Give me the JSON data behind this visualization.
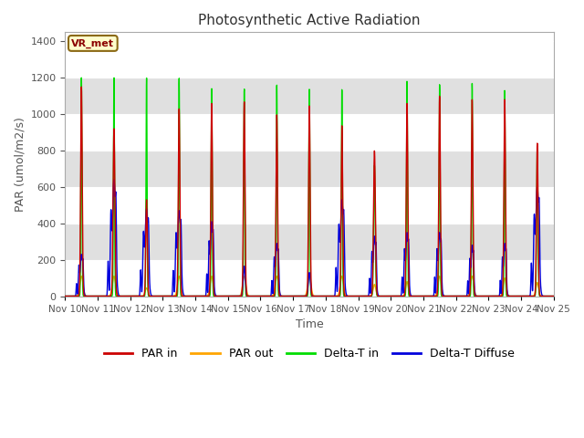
{
  "title": "Photosynthetic Active Radiation",
  "ylabel": "PAR (umol/m2/s)",
  "xlabel": "Time",
  "ylim": [
    0,
    1450
  ],
  "yticks": [
    0,
    200,
    400,
    600,
    800,
    1000,
    1200,
    1400
  ],
  "colors": {
    "PAR in": "#cc0000",
    "PAR out": "#ffa500",
    "Delta-T in": "#00dd00",
    "Delta-T Diffuse": "#0000dd"
  },
  "annotation_text": "VR_met",
  "band_colors": [
    "#e8e8e8",
    "#d8d8d8"
  ],
  "par_in_peaks": [
    1150,
    920,
    530,
    1030,
    1060,
    1070,
    1000,
    1050,
    940,
    800,
    1060,
    1100,
    1080,
    1080,
    840
  ],
  "par_out_peaks": [
    110,
    110,
    45,
    110,
    110,
    110,
    110,
    110,
    110,
    65,
    80,
    110,
    110,
    100,
    75
  ],
  "delta_t_in_peaks": [
    1200,
    1200,
    1200,
    1200,
    1145,
    1145,
    1170,
    1150,
    1145,
    720,
    1185,
    1165,
    1170,
    1130,
    810
  ],
  "delta_t_diff_peaks": [
    230,
    640,
    480,
    470,
    410,
    165,
    290,
    130,
    530,
    330,
    350,
    350,
    280,
    290,
    605
  ],
  "par_in_widths": [
    0.06,
    0.07,
    0.06,
    0.06,
    0.06,
    0.06,
    0.06,
    0.06,
    0.06,
    0.07,
    0.06,
    0.06,
    0.06,
    0.06,
    0.06
  ],
  "par_out_widths": [
    0.12,
    0.12,
    0.1,
    0.12,
    0.12,
    0.12,
    0.12,
    0.12,
    0.12,
    0.1,
    0.1,
    0.12,
    0.12,
    0.11,
    0.1
  ],
  "delta_t_in_widths": [
    0.04,
    0.04,
    0.04,
    0.04,
    0.04,
    0.04,
    0.04,
    0.04,
    0.04,
    0.06,
    0.04,
    0.04,
    0.04,
    0.04,
    0.05
  ],
  "delta_t_diff_widths": [
    0.1,
    0.12,
    0.12,
    0.12,
    0.1,
    0.08,
    0.1,
    0.08,
    0.12,
    0.1,
    0.1,
    0.1,
    0.09,
    0.09,
    0.12
  ],
  "n_days": 15,
  "start_day": 10
}
